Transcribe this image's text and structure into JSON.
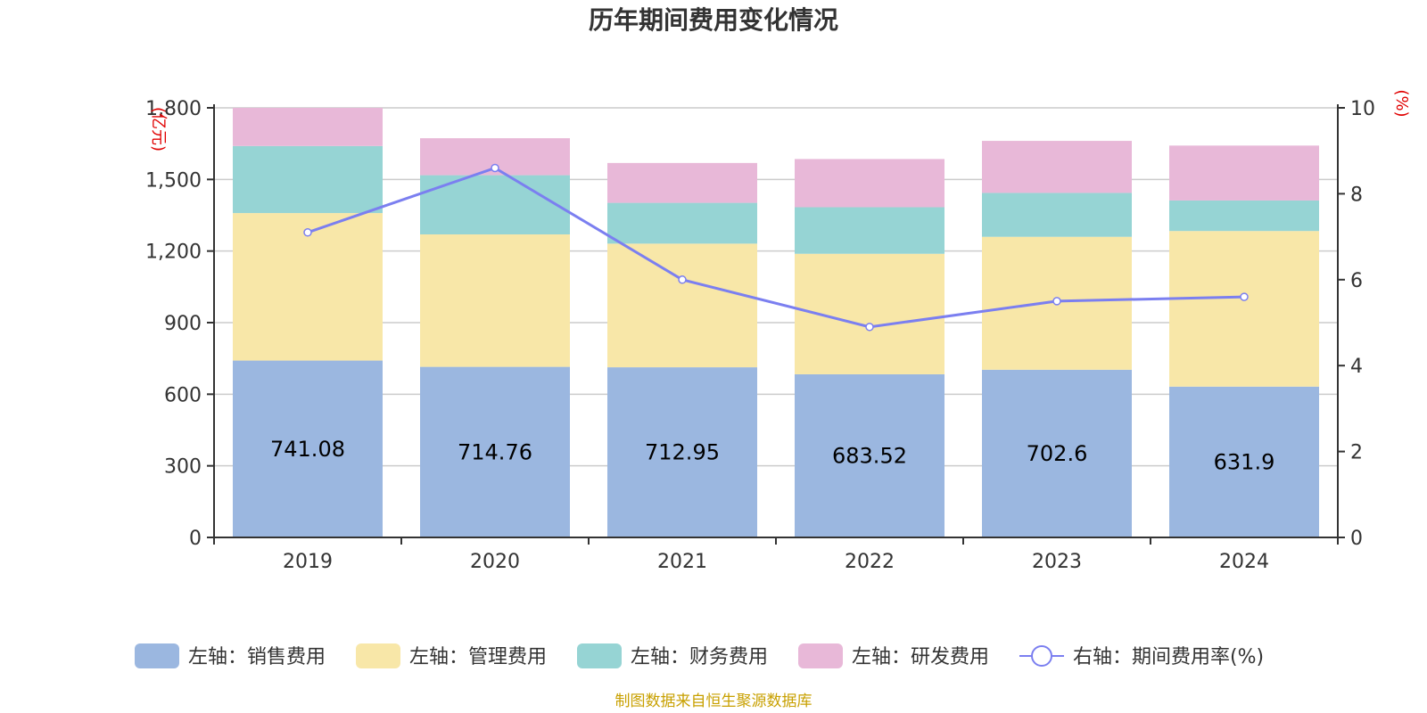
{
  "chart_data": {
    "type": "bar",
    "stacked": true,
    "title": "历年期间费用变化情况",
    "categories": [
      "2019",
      "2020",
      "2021",
      "2022",
      "2023",
      "2024"
    ],
    "series": [
      {
        "name": "左轴：销售费用",
        "axis": "left",
        "color": "#9bb7e0",
        "values": [
          741.08,
          714.76,
          712.95,
          683.52,
          702.6,
          631.9
        ],
        "show_labels": true
      },
      {
        "name": "左轴：管理费用",
        "axis": "left",
        "color": "#f8e7a8",
        "values": [
          618,
          555,
          518,
          505,
          557,
          652
        ]
      },
      {
        "name": "左轴：财务费用",
        "axis": "left",
        "color": "#96d4d4",
        "values": [
          281,
          248,
          171,
          195,
          184,
          128
        ]
      },
      {
        "name": "左轴：研发费用",
        "axis": "left",
        "color": "#e8b8d8",
        "values": [
          160,
          155,
          167,
          202,
          218,
          230
        ]
      }
    ],
    "line_series": {
      "name": "右轴：期间费用率(%)",
      "axis": "right",
      "color": "#7b7ff0",
      "values": [
        7.1,
        8.6,
        6.0,
        4.9,
        5.5,
        5.6
      ]
    },
    "left_axis": {
      "unit": "(亿元)",
      "min": 0,
      "max": 1800,
      "ticks": [
        0,
        300,
        600,
        900,
        1200,
        1500,
        1800
      ],
      "tick_labels": [
        "0",
        "300",
        "600",
        "900",
        "1,200",
        "1,500",
        "1,800"
      ]
    },
    "right_axis": {
      "unit": "(%)",
      "min": 0,
      "max": 10,
      "ticks": [
        0,
        2,
        4,
        6,
        8,
        10
      ],
      "tick_labels": [
        "0",
        "2",
        "4",
        "6",
        "8",
        "10"
      ]
    },
    "grid": true,
    "legend_position": "bottom"
  },
  "footer": {
    "source": "制图数据来自恒生聚源数据库"
  },
  "colors": {
    "unit_text": "#e00000",
    "source_text": "#c8a000",
    "axis": "#333333",
    "grid": "#cccccc"
  }
}
